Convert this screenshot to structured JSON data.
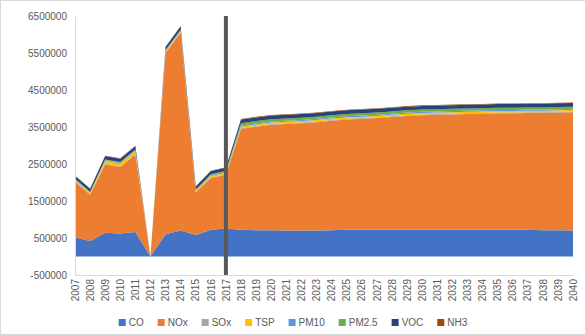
{
  "chart_data": {
    "type": "area",
    "stacked": true,
    "legend": "bottom",
    "categories": [
      "2007",
      "2008",
      "2009",
      "2010",
      "2011",
      "2012",
      "2013",
      "2014",
      "2015",
      "2016",
      "2017",
      "2018",
      "2019",
      "2020",
      "2021",
      "2022",
      "2023",
      "2024",
      "2025",
      "2026",
      "2027",
      "2028",
      "2029",
      "2030",
      "2031",
      "2032",
      "2033",
      "2034",
      "2035",
      "2036",
      "2037",
      "2038",
      "2039",
      "2040"
    ],
    "ylim": [
      -500000,
      6500000
    ],
    "yticks": [
      -500000,
      500000,
      1500000,
      2500000,
      3500000,
      4500000,
      5500000,
      6500000
    ],
    "vertical_line": {
      "x": "2017"
    },
    "series": [
      {
        "name": "CO",
        "color": "#4472c4",
        "values": [
          520000,
          420000,
          640000,
          620000,
          660000,
          0,
          600000,
          700000,
          580000,
          720000,
          760000,
          720000,
          710000,
          710000,
          700000,
          700000,
          700000,
          710000,
          720000,
          720000,
          720000,
          730000,
          730000,
          730000,
          730000,
          730000,
          730000,
          730000,
          730000,
          720000,
          720000,
          710000,
          710000,
          700000
        ]
      },
      {
        "name": "NOx",
        "color": "#ed7d31",
        "values": [
          1500000,
          1250000,
          1850000,
          1800000,
          2100000,
          0,
          4900000,
          5350000,
          1150000,
          1400000,
          1450000,
          2730000,
          2800000,
          2850000,
          2880000,
          2900000,
          2930000,
          2960000,
          2980000,
          3000000,
          3020000,
          3040000,
          3070000,
          3090000,
          3100000,
          3110000,
          3120000,
          3130000,
          3140000,
          3150000,
          3160000,
          3170000,
          3180000,
          3200000
        ]
      },
      {
        "name": "SOx",
        "color": "#a5a5a5",
        "values": [
          15000,
          15000,
          15000,
          15000,
          15000,
          0,
          15000,
          15000,
          15000,
          15000,
          15000,
          20000,
          20000,
          20000,
          20000,
          20000,
          20000,
          20000,
          20000,
          20000,
          20000,
          20000,
          20000,
          20000,
          20000,
          20000,
          20000,
          20000,
          20000,
          20000,
          20000,
          20000,
          20000,
          20000
        ]
      },
      {
        "name": "TSP",
        "color": "#ffc000",
        "values": [
          30000,
          30000,
          80000,
          80000,
          80000,
          0,
          30000,
          30000,
          30000,
          40000,
          40000,
          40000,
          40000,
          40000,
          40000,
          40000,
          40000,
          40000,
          40000,
          40000,
          40000,
          40000,
          40000,
          40000,
          40000,
          40000,
          40000,
          40000,
          40000,
          40000,
          40000,
          40000,
          40000,
          40000
        ]
      },
      {
        "name": "PM10",
        "color": "#5b9bd5",
        "values": [
          20000,
          20000,
          25000,
          25000,
          25000,
          0,
          20000,
          20000,
          20000,
          25000,
          25000,
          30000,
          30000,
          30000,
          30000,
          30000,
          30000,
          30000,
          30000,
          30000,
          30000,
          30000,
          30000,
          30000,
          30000,
          30000,
          30000,
          30000,
          30000,
          30000,
          30000,
          30000,
          30000,
          30000
        ]
      },
      {
        "name": "PM2.5",
        "color": "#70ad47",
        "values": [
          15000,
          15000,
          15000,
          15000,
          15000,
          0,
          15000,
          15000,
          15000,
          20000,
          20000,
          60000,
          60000,
          60000,
          60000,
          60000,
          60000,
          60000,
          60000,
          60000,
          60000,
          60000,
          60000,
          60000,
          60000,
          60000,
          60000,
          60000,
          60000,
          60000,
          60000,
          60000,
          60000,
          60000
        ]
      },
      {
        "name": "VOC",
        "color": "#264478",
        "values": [
          80000,
          80000,
          90000,
          90000,
          90000,
          0,
          80000,
          90000,
          80000,
          90000,
          90000,
          100000,
          100000,
          100000,
          100000,
          100000,
          100000,
          100000,
          100000,
          100000,
          100000,
          100000,
          100000,
          100000,
          100000,
          100000,
          100000,
          100000,
          100000,
          100000,
          100000,
          100000,
          100000,
          100000
        ]
      },
      {
        "name": "NH3",
        "color": "#9e480e",
        "values": [
          10000,
          10000,
          10000,
          10000,
          10000,
          0,
          10000,
          10000,
          10000,
          10000,
          10000,
          15000,
          15000,
          15000,
          15000,
          15000,
          15000,
          15000,
          15000,
          15000,
          15000,
          15000,
          15000,
          15000,
          15000,
          15000,
          15000,
          15000,
          15000,
          15000,
          15000,
          15000,
          15000,
          15000
        ]
      }
    ]
  }
}
